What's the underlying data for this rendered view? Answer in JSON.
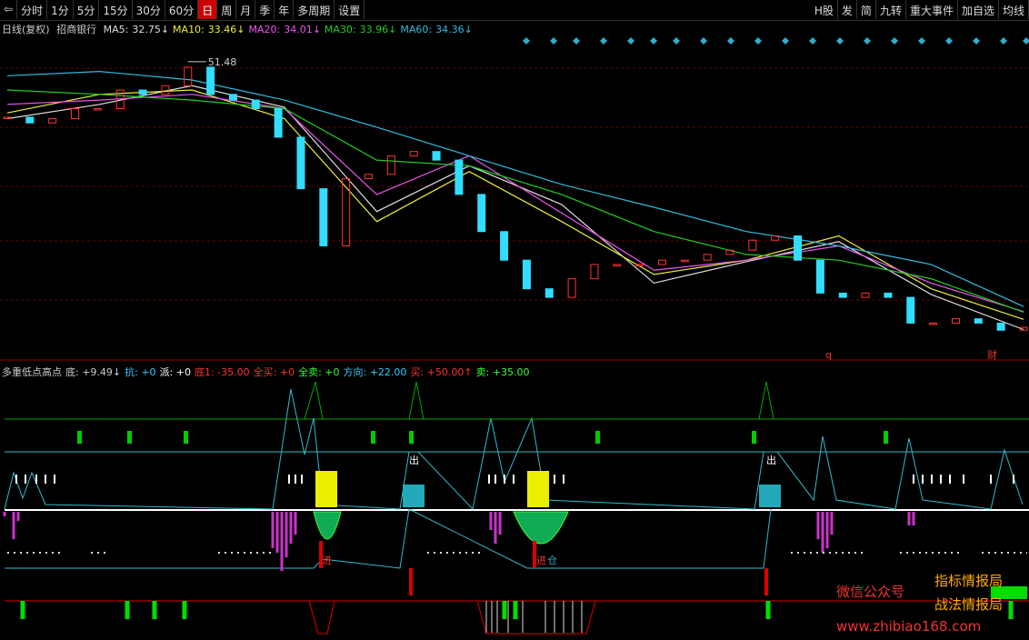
{
  "toolbar": {
    "left": [
      "⇦",
      "分时",
      "1分",
      "5分",
      "15分",
      "30分",
      "60分",
      "日",
      "周",
      "月",
      "季",
      "年",
      "多周期",
      "设置"
    ],
    "right": [
      "H股",
      "发",
      "简",
      "九转",
      "重大事件",
      "加自选",
      "均线"
    ]
  },
  "legend": {
    "period": "日线(复权)",
    "stock": "招商银行",
    "ma": [
      {
        "name": "MA5:",
        "value": "32.75↓",
        "color": "#ddd"
      },
      {
        "name": "MA10:",
        "value": "33.46↓",
        "color": "#ee3"
      },
      {
        "name": "MA20:",
        "value": "34.01↓",
        "color": "#e5e"
      },
      {
        "name": "MA30:",
        "value": "33.96↓",
        "color": "#2c2"
      },
      {
        "name": "MA60:",
        "value": "34.36↓",
        "color": "#3bd"
      }
    ]
  },
  "indicator_legend": [
    {
      "text": "多重低点高点",
      "color": "#ccc"
    },
    {
      "text": "底: +9.49↓",
      "color": "#ccc"
    },
    {
      "text": "抗: +0",
      "color": "#3cf"
    },
    {
      "text": "派: +0",
      "color": "#fff"
    },
    {
      "text": "底1: -35.00",
      "color": "#f33"
    },
    {
      "text": "全买: +0",
      "color": "#f33"
    },
    {
      "text": "全卖: +0",
      "color": "#3f3"
    },
    {
      "text": "方向: +22.00",
      "color": "#3cf"
    },
    {
      "text": "买: +50.00↑",
      "color": "#f33"
    },
    {
      "text": "卖: +35.00",
      "color": "#3f3"
    }
  ],
  "markers": [
    "q",
    "财",
    "出",
    "进",
    "仓"
  ],
  "watermark": [
    "微信公众号",
    "指标情报局",
    "战法情报局",
    "www.zhibiao168.com"
  ],
  "chart_data": {
    "type": "candlestick",
    "ylim": [
      31,
      53
    ],
    "peak_label": 51.48,
    "up_color": "#f33",
    "down_color": "#3df",
    "closes": [
      47.6,
      47.2,
      47.5,
      48.2,
      48.2,
      49.5,
      49.2,
      49.8,
      51.1,
      49.2,
      48.8,
      48.2,
      46.2,
      42.6,
      38.6,
      43.3,
      43.6,
      44.9,
      45.2,
      44.6,
      42.2,
      39.6,
      37.6,
      35.6,
      35.0,
      36.3,
      37.3,
      37.3,
      37.3,
      37.6,
      37.6,
      38.0,
      38.3,
      39.0,
      39.3,
      37.6,
      35.3,
      35.0,
      35.3,
      35.0,
      33.2,
      33.2,
      33.5,
      33.2,
      32.7,
      32.9
    ],
    "series": [
      {
        "name": "MA5",
        "color": "#ddd",
        "values": [
          47.5,
          48.5,
          49.8,
          48.3,
          41.0,
          44.2,
          41.5,
          36.0,
          37.5,
          38.9,
          35.2,
          32.75
        ]
      },
      {
        "name": "MA10",
        "color": "#ee3",
        "values": [
          47.9,
          49.2,
          49.5,
          47.5,
          40.3,
          43.8,
          40.3,
          36.6,
          37.6,
          39.3,
          35.6,
          33.46
        ]
      },
      {
        "name": "MA20",
        "color": "#e5e",
        "values": [
          48.5,
          48.8,
          49.2,
          48.2,
          42.2,
          44.9,
          40.9,
          36.9,
          37.6,
          38.6,
          36.0,
          34.01
        ]
      },
      {
        "name": "MA30",
        "color": "#2c2",
        "values": [
          49.5,
          49.2,
          48.8,
          48.2,
          44.6,
          44.2,
          42.2,
          39.6,
          38.0,
          37.6,
          36.3,
          33.96
        ]
      },
      {
        "name": "MA60",
        "color": "#3bd",
        "values": [
          50.5,
          50.8,
          50.2,
          48.8,
          46.9,
          44.9,
          42.9,
          41.3,
          39.6,
          38.6,
          37.3,
          34.36
        ]
      }
    ]
  }
}
